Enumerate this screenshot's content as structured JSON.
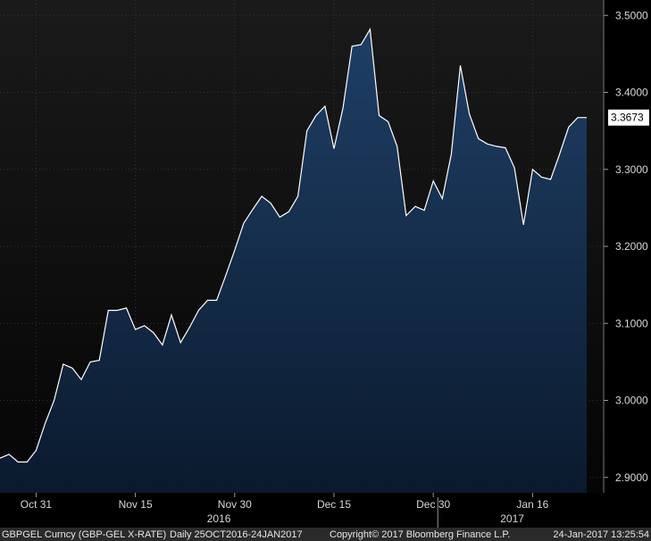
{
  "chart_data": {
    "type": "area",
    "title": "",
    "xlabel": "",
    "ylabel": "",
    "ylim": [
      2.88,
      3.52
    ],
    "y_ticks": [
      "3.5000",
      "3.4000",
      "3.3000",
      "3.2000",
      "3.1000",
      "3.0000",
      "2.9000"
    ],
    "x_tick_labels": [
      "Oct 31",
      "Nov 15",
      "Nov 30",
      "Dec 15",
      "Dec 30",
      "Jan 16"
    ],
    "year_labels": [
      "2016",
      "2017"
    ],
    "last_value_label": "3.3673",
    "grid": true,
    "colors": {
      "background": "#000000",
      "plot_background_top": "#1a1a1a",
      "plot_background_bottom": "#050505",
      "area_fill_top": "#1f3f66",
      "area_fill_bottom": "#0a1a2e",
      "line": "#ffffff",
      "grid": "#333333",
      "last_value_box": "#ffffff",
      "footer_bar": "#2a2a2a"
    },
    "series": [
      {
        "x": [
          "2016-10-25",
          "2016-10-26",
          "2016-10-27",
          "2016-10-28",
          "2016-10-31",
          "2016-11-01",
          "2016-11-02",
          "2016-11-03",
          "2016-11-04",
          "2016-11-07",
          "2016-11-08",
          "2016-11-09",
          "2016-11-10",
          "2016-11-11",
          "2016-11-14",
          "2016-11-15",
          "2016-11-16",
          "2016-11-17",
          "2016-11-18",
          "2016-11-21",
          "2016-11-22",
          "2016-11-23",
          "2016-11-24",
          "2016-11-25",
          "2016-11-28",
          "2016-11-29",
          "2016-11-30",
          "2016-12-01",
          "2016-12-02",
          "2016-12-05",
          "2016-12-06",
          "2016-12-07",
          "2016-12-08",
          "2016-12-09",
          "2016-12-12",
          "2016-12-13",
          "2016-12-14",
          "2016-12-15",
          "2016-12-16",
          "2016-12-19",
          "2016-12-20",
          "2016-12-21",
          "2016-12-22",
          "2016-12-23",
          "2016-12-26",
          "2016-12-27",
          "2016-12-28",
          "2016-12-29",
          "2016-12-30",
          "2017-01-02",
          "2017-01-03",
          "2017-01-04",
          "2017-01-05",
          "2017-01-06",
          "2017-01-09",
          "2017-01-10",
          "2017-01-11",
          "2017-01-12",
          "2017-01-13",
          "2017-01-16",
          "2017-01-17",
          "2017-01-18",
          "2017-01-19",
          "2017-01-20",
          "2017-01-23",
          "2017-01-24"
        ],
        "values": [
          2.925,
          2.93,
          2.92,
          2.92,
          2.935,
          2.97,
          3.0,
          3.047,
          3.042,
          3.027,
          3.05,
          3.052,
          3.117,
          3.117,
          3.12,
          3.092,
          3.097,
          3.088,
          3.072,
          3.111,
          3.075,
          3.095,
          3.117,
          3.13,
          3.13,
          3.162,
          3.195,
          3.23,
          3.248,
          3.265,
          3.256,
          3.238,
          3.245,
          3.265,
          3.35,
          3.37,
          3.382,
          3.327,
          3.38,
          3.46,
          3.462,
          3.482,
          3.37,
          3.362,
          3.33,
          3.24,
          3.252,
          3.247,
          3.285,
          3.262,
          3.32,
          3.435,
          3.372,
          3.34,
          3.333,
          3.33,
          3.328,
          3.302,
          3.228,
          3.3,
          3.29,
          3.287,
          3.32,
          3.355,
          3.3673,
          3.3673
        ]
      }
    ]
  },
  "footer": {
    "ticker": "GBPGEL Curncy (GBP-GEL X-RATE)",
    "range": "Daily 25OCT2016-24JAN2017",
    "copyright": "Copyright© 2017 Bloomberg Finance L.P.",
    "timestamp": "24-Jan-2017 13:25:54"
  }
}
